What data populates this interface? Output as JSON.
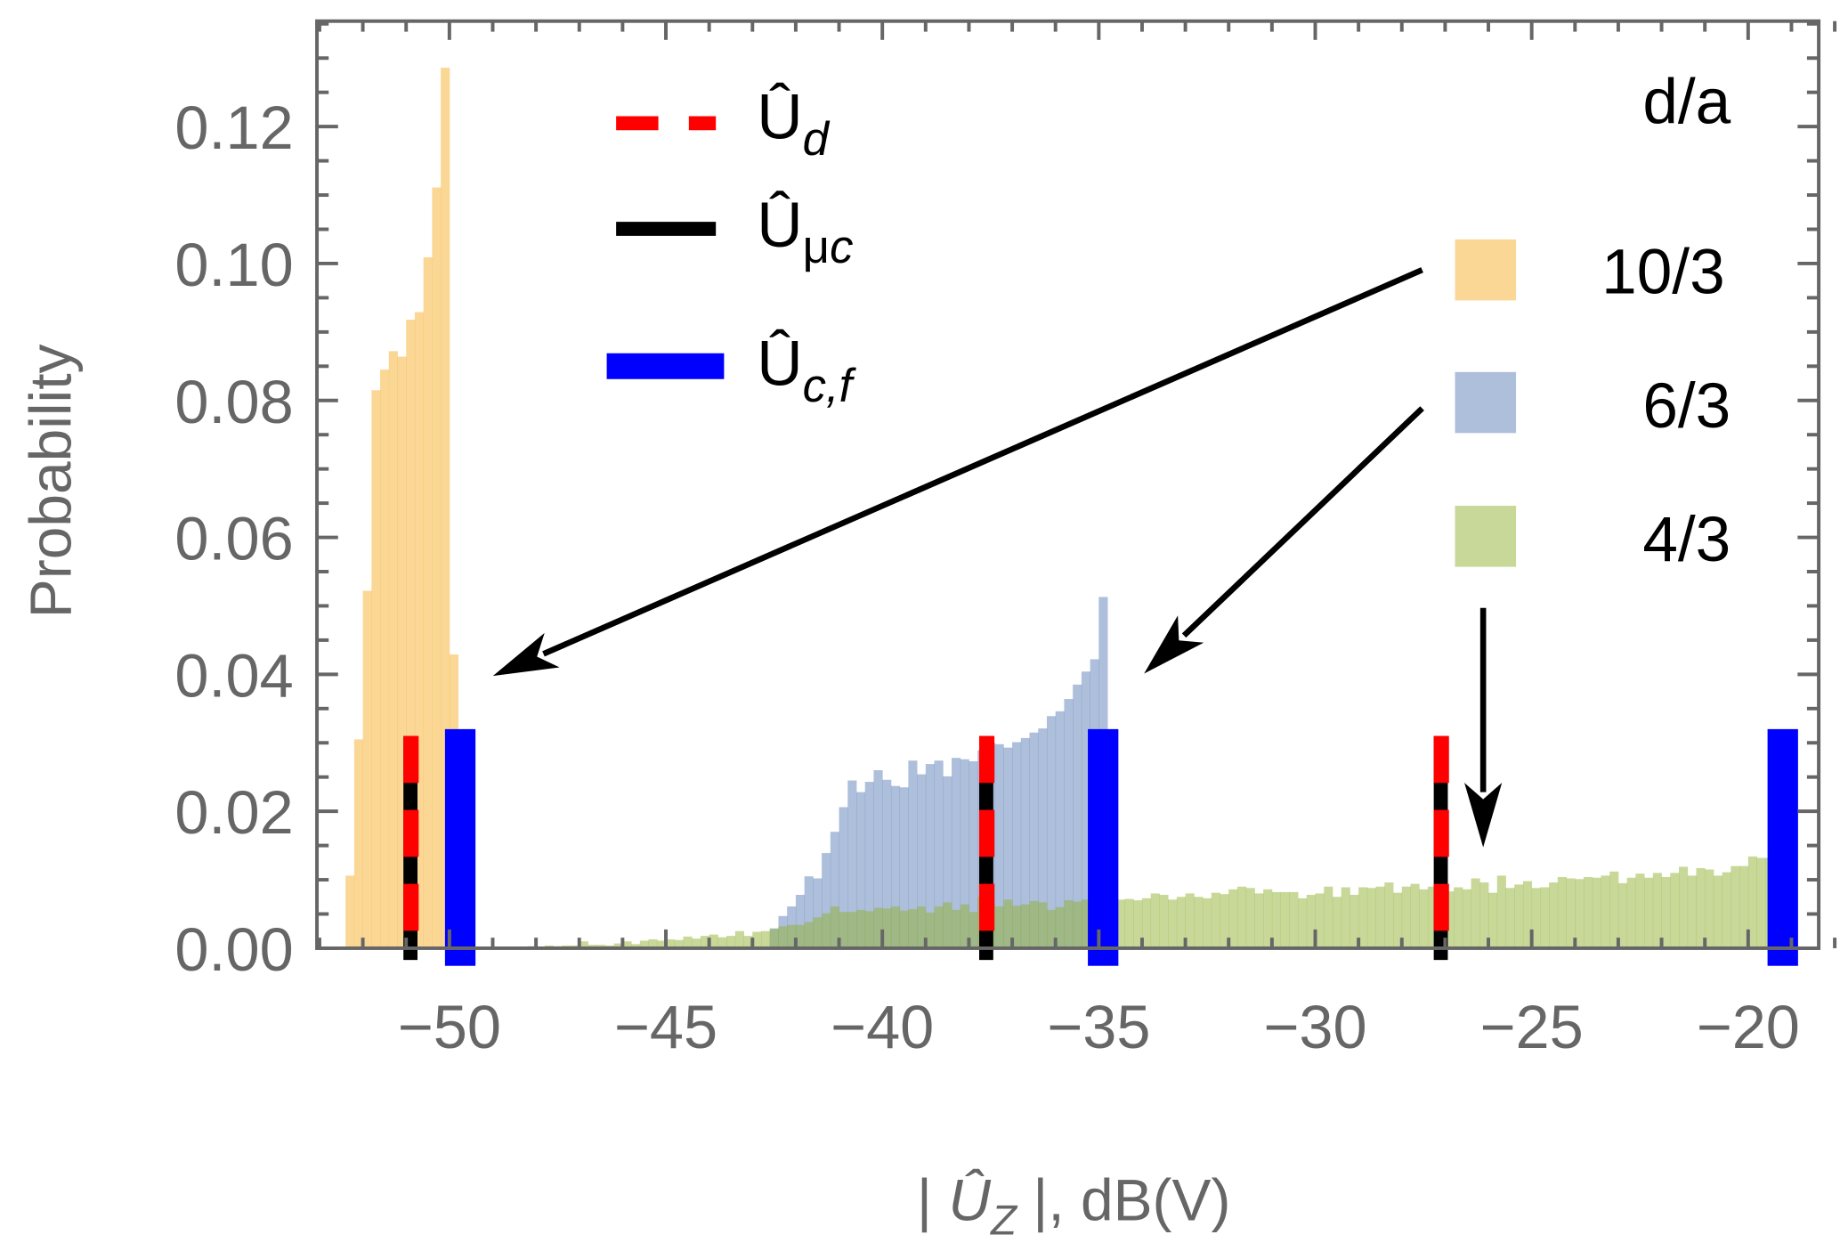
{
  "chart_data": {
    "type": "bar",
    "subtype": "histogram",
    "xlabel": {
      "prefix": "| ",
      "symbol": "Û",
      "sub": "Z",
      "suffix": " |, dB(V)"
    },
    "ylabel": "Probability",
    "xlim": [
      -53.06,
      -18.37
    ],
    "ylim": [
      0,
      0.1354
    ],
    "grid": false,
    "x_ticks": [
      {
        "value": -50,
        "label": "−50"
      },
      {
        "value": -45,
        "label": "−45"
      },
      {
        "value": -40,
        "label": "−40"
      },
      {
        "value": -35,
        "label": "−35"
      },
      {
        "value": -30,
        "label": "−30"
      },
      {
        "value": -25,
        "label": "−25"
      },
      {
        "value": -20,
        "label": "−20"
      }
    ],
    "y_ticks": [
      {
        "value": 0,
        "label": "0.00"
      },
      {
        "value": 0.02,
        "label": "0.02"
      },
      {
        "value": 0.04,
        "label": "0.04"
      },
      {
        "value": 0.06,
        "label": "0.06"
      },
      {
        "value": 0.08,
        "label": "0.08"
      },
      {
        "value": 0.1,
        "label": "0.10"
      },
      {
        "value": 0.12,
        "label": "0.12"
      }
    ],
    "legend_title": "d/a",
    "legend_placement": "top-right",
    "series": [
      {
        "name": "10/3",
        "color": "#f7af2d",
        "opacity": 0.5,
        "bin_start": -52.4,
        "bin_width": 0.2,
        "values": [
          0.0106,
          0.0305,
          0.0522,
          0.0815,
          0.0845,
          0.0872,
          0.0864,
          0.0918,
          0.0929,
          0.1009,
          0.1111,
          0.1286,
          0.0429
        ]
      },
      {
        "name": "6/3",
        "color": "#5b7fb7",
        "opacity": 0.5,
        "bin_start": -42.6,
        "bin_width": 0.2,
        "values": [
          0.0029,
          0.0047,
          0.0061,
          0.0078,
          0.0105,
          0.0102,
          0.0139,
          0.017,
          0.0206,
          0.0245,
          0.0228,
          0.0243,
          0.026,
          0.0246,
          0.0237,
          0.0235,
          0.0274,
          0.0254,
          0.0269,
          0.0274,
          0.0251,
          0.0278,
          0.0276,
          0.0273,
          0.0289,
          0.03,
          0.0298,
          0.0293,
          0.0301,
          0.0307,
          0.0315,
          0.0321,
          0.0339,
          0.0346,
          0.0364,
          0.0385,
          0.0404,
          0.0422,
          0.0513
        ]
      },
      {
        "name": "4/3",
        "color": "#91b131",
        "opacity": 0.5,
        "bin_start": -48.2,
        "bin_width": 0.2,
        "values": [
          0.0003,
          0.0002,
          0.0004,
          0.0003,
          0.0004,
          0.0004,
          0.001,
          0.0005,
          0.0005,
          0.0004,
          0.0007,
          0.001,
          0.0006,
          0.0011,
          0.0013,
          0.0011,
          0.0013,
          0.0012,
          0.0017,
          0.0014,
          0.0018,
          0.002,
          0.0016,
          0.0018,
          0.0025,
          0.0018,
          0.0024,
          0.0025,
          0.0028,
          0.0032,
          0.0034,
          0.0034,
          0.0038,
          0.0045,
          0.0051,
          0.0061,
          0.0053,
          0.0053,
          0.0056,
          0.0054,
          0.0059,
          0.0058,
          0.0061,
          0.0055,
          0.0057,
          0.0061,
          0.0052,
          0.0061,
          0.0067,
          0.0056,
          0.0064,
          0.0053,
          0.0075,
          0.0066,
          0.0061,
          0.0071,
          0.0062,
          0.0064,
          0.0069,
          0.0067,
          0.0056,
          0.006,
          0.007,
          0.0068,
          0.0071,
          0.0068,
          0.0072,
          0.007,
          0.0071,
          0.0072,
          0.007,
          0.0073,
          0.008,
          0.0078,
          0.0071,
          0.0075,
          0.008,
          0.0075,
          0.0073,
          0.0081,
          0.0079,
          0.0086,
          0.009,
          0.0088,
          0.008,
          0.0086,
          0.0082,
          0.0082,
          0.0082,
          0.0073,
          0.0078,
          0.008,
          0.009,
          0.0075,
          0.0089,
          0.0078,
          0.0089,
          0.0088,
          0.009,
          0.0096,
          0.0081,
          0.009,
          0.0094,
          0.0086,
          0.009,
          0.0096,
          0.0083,
          0.0089,
          0.0086,
          0.0102,
          0.0096,
          0.0081,
          0.0106,
          0.0088,
          0.0093,
          0.0098,
          0.0088,
          0.0089,
          0.0096,
          0.0104,
          0.0102,
          0.0101,
          0.0104,
          0.0103,
          0.0106,
          0.0112,
          0.0095,
          0.0103,
          0.0109,
          0.0103,
          0.011,
          0.0104,
          0.011,
          0.0119,
          0.0106,
          0.0117,
          0.0115,
          0.0106,
          0.0111,
          0.012,
          0.012,
          0.0134,
          0.0132,
          0.0132
        ]
      }
    ],
    "markers": {
      "legend": [
        {
          "key": "Ud",
          "symbol": "Û",
          "sub": "d",
          "sub_prefix": "",
          "style": "dashed",
          "color": "#ff0000"
        },
        {
          "key": "Umuc",
          "symbol": "Û",
          "sub_prefix": "μ",
          "sub": "c",
          "style": "solid",
          "color": "#000000"
        },
        {
          "key": "Ucf",
          "symbol": "Û",
          "sub": "c,f",
          "sub_prefix": "",
          "style": "thick",
          "color": "#0000ff"
        }
      ],
      "Ud_and_Umuc": [
        -50.9,
        -37.6,
        -27.1
      ],
      "Ucf": [
        -49.75,
        -34.9,
        -19.2
      ],
      "top_value_Ud": 0.031,
      "top_value_Ucf": 0.032
    }
  }
}
